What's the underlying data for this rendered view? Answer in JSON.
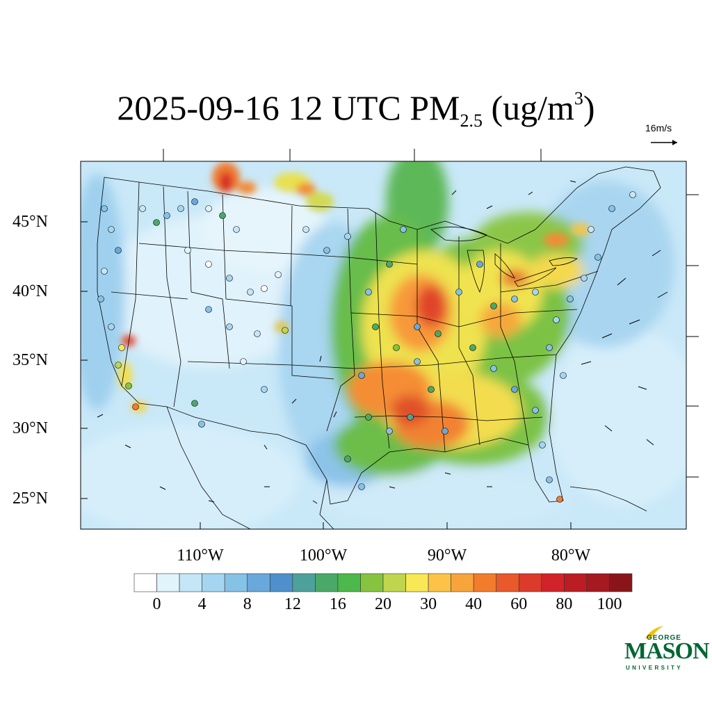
{
  "title": {
    "prefix": "2025-09-16 12 UTC PM",
    "subscript": "2.5",
    "unit_open": " (ug/m",
    "superscript": "3",
    "unit_close": ")"
  },
  "wind_reference": {
    "label": "16m/s"
  },
  "lat_labels": [
    "45°N",
    "40°N",
    "35°N",
    "30°N",
    "25°N"
  ],
  "lon_labels": [
    "110°W",
    "100°W",
    "90°W",
    "80°W"
  ],
  "colorbar": {
    "labels": [
      "0",
      "4",
      "8",
      "12",
      "16",
      "20",
      "30",
      "40",
      "60",
      "80",
      "100"
    ],
    "colors": [
      "#ffffff",
      "#e1f3fb",
      "#c4e6f7",
      "#a5d6f1",
      "#86c1e6",
      "#69a8da",
      "#4f8fcc",
      "#4ea19a",
      "#4aa968",
      "#4db84b",
      "#86c440",
      "#c0d54e",
      "#f8e855",
      "#fcc348",
      "#f8a43c",
      "#f27c2c",
      "#e9592b",
      "#dc3a2a",
      "#d2222a",
      "#bc1c24",
      "#a41a1f",
      "#8a1519"
    ]
  },
  "logo": {
    "line1": "GEORGE",
    "line2": "MASON",
    "line3": "UNIVERSITY",
    "accent": "#006633",
    "flame": "#f2c200"
  }
}
